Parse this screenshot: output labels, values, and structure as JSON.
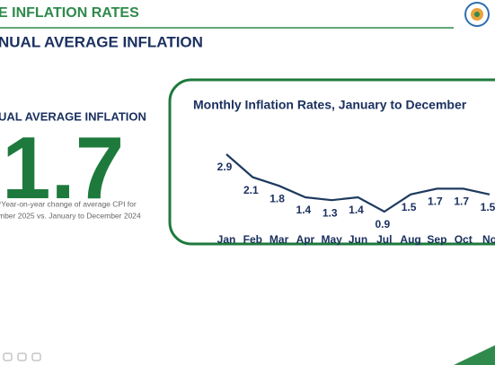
{
  "header": {
    "title": "E INFLATION RATES",
    "subtitle": "NUAL AVERAGE INFLATION"
  },
  "summary": {
    "label": "UAL AVERAGE INFLATION",
    "value": "1.7",
    "note_lines": [
      "*Year-on-year change of average CPI for",
      "mber 2025 vs. January to December 2024"
    ]
  },
  "chart_data": {
    "type": "line",
    "title": "Monthly Inflation Rates, January to December",
    "categories": [
      "Jan",
      "Feb",
      "Mar",
      "Apr",
      "May",
      "Jun",
      "Jul",
      "Aug",
      "Sep",
      "Oct",
      "No"
    ],
    "values": [
      2.9,
      2.1,
      1.8,
      1.4,
      1.3,
      1.4,
      0.9,
      1.5,
      1.7,
      1.7,
      1.5
    ],
    "color": "#1f3a5f"
  }
}
